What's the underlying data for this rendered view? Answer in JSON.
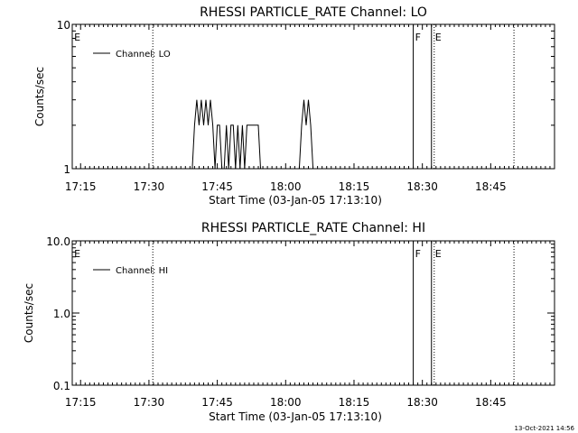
{
  "chart_data": [
    {
      "type": "line",
      "title": "RHESSI PARTICLE_RATE Channel: LO",
      "xlabel": "Start Time (03-Jan-05 17:13:10)",
      "ylabel": "Counts/sec",
      "ylim": [
        1,
        10
      ],
      "yscale": "log",
      "y_ticks": [
        "1",
        "10"
      ],
      "x_ticks": [
        "17:15",
        "17:30",
        "17:45",
        "18:00",
        "18:15",
        "18:30",
        "18:45"
      ],
      "xlim_minutes": [
        1033.17,
        1139.0
      ],
      "grid": false,
      "legend_position": "top-left",
      "series": [
        {
          "name": "Channel: LO",
          "x_minutes": [
            1043.17,
            1059.0,
            1059.5,
            1060.0,
            1060.5,
            1061.0,
            1061.5,
            1062.0,
            1062.5,
            1063.0,
            1063.5,
            1064.0,
            1064.5,
            1065.0,
            1065.5,
            1066.0,
            1066.5,
            1067.0,
            1067.5,
            1068.0,
            1068.5,
            1069.0,
            1069.5,
            1070.0,
            1070.5,
            1071.0,
            1071.5,
            1072.0,
            1072.5,
            1073.0,
            1073.5,
            1074.0,
            1074.5,
            1075.0,
            1075.5,
            1076.0,
            1076.5,
            1077.0,
            1077.5,
            1078.0,
            1078.5,
            1079.0,
            1083.0,
            1083.5,
            1084.0,
            1084.5,
            1085.0,
            1085.5,
            1086.0,
            1086.5,
            1087.0,
            1108.0
          ],
          "values": [
            1,
            1,
            1,
            2,
            3,
            2,
            3,
            2,
            3,
            2,
            3,
            2,
            1,
            2,
            2,
            1,
            1,
            2,
            1,
            2,
            2,
            1,
            2,
            1,
            2,
            1,
            2,
            2,
            2,
            2,
            2,
            2,
            1,
            1,
            1,
            1,
            1,
            1,
            1,
            1,
            1,
            1,
            1,
            2,
            3,
            2,
            3,
            2,
            1,
            1,
            1,
            1
          ]
        }
      ],
      "annotations": [
        {
          "label": "E",
          "x_minutes": 1033.4,
          "style": "letter"
        },
        {
          "label": "",
          "x_minutes": 1050.85,
          "style": "dotted"
        },
        {
          "label": "F",
          "x_minutes": 1108.0,
          "style": "solid"
        },
        {
          "label": "",
          "x_minutes": 1112.0,
          "style": "solid"
        },
        {
          "label": "E",
          "x_minutes": 1112.6,
          "style": "dotted"
        },
        {
          "label": "",
          "x_minutes": 1130.1,
          "style": "dotted"
        }
      ]
    },
    {
      "type": "line",
      "title": "RHESSI PARTICLE_RATE Channel: HI",
      "xlabel": "Start Time (03-Jan-05 17:13:10)",
      "ylabel": "Counts/sec",
      "ylim": [
        0.1,
        10
      ],
      "yscale": "log",
      "y_ticks": [
        "0.1",
        "1.0",
        "10.0"
      ],
      "x_ticks": [
        "17:15",
        "17:30",
        "17:45",
        "18:00",
        "18:15",
        "18:30",
        "18:45"
      ],
      "xlim_minutes": [
        1033.17,
        1139.0
      ],
      "grid": false,
      "legend_position": "top-left",
      "series": [
        {
          "name": "Channel: HI",
          "x_minutes": [],
          "values": []
        }
      ],
      "annotations": [
        {
          "label": "E",
          "x_minutes": 1033.4,
          "style": "letter"
        },
        {
          "label": "",
          "x_minutes": 1050.85,
          "style": "dotted"
        },
        {
          "label": "F",
          "x_minutes": 1108.0,
          "style": "solid"
        },
        {
          "label": "",
          "x_minutes": 1112.0,
          "style": "solid"
        },
        {
          "label": "E",
          "x_minutes": 1112.6,
          "style": "dotted"
        },
        {
          "label": "",
          "x_minutes": 1130.1,
          "style": "dotted"
        }
      ]
    }
  ],
  "footer": {
    "timestamp": "13-Oct-2021 14:56"
  }
}
